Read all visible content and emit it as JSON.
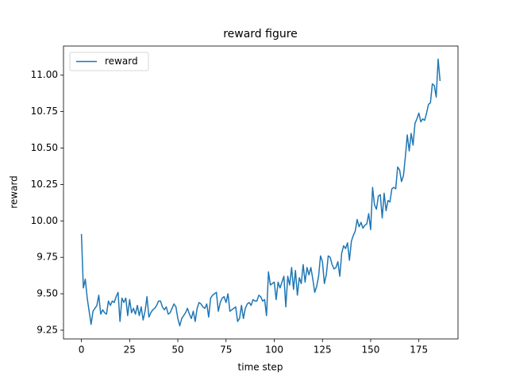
{
  "chart_data": {
    "type": "line",
    "title": "reward figure",
    "x_label": "time step",
    "y_label": "reward",
    "x": [
      0,
      1,
      2,
      3,
      4,
      5,
      6,
      7,
      8,
      9,
      10,
      11,
      12,
      13,
      14,
      15,
      16,
      17,
      18,
      19,
      20,
      21,
      22,
      23,
      24,
      25,
      26,
      27,
      28,
      29,
      30,
      31,
      32,
      33,
      34,
      35,
      36,
      37,
      38,
      39,
      40,
      41,
      42,
      43,
      44,
      45,
      46,
      47,
      48,
      49,
      50,
      51,
      52,
      53,
      54,
      55,
      56,
      57,
      58,
      59,
      60,
      61,
      62,
      63,
      64,
      65,
      66,
      67,
      68,
      69,
      70,
      71,
      72,
      73,
      74,
      75,
      76,
      77,
      78,
      79,
      80,
      81,
      82,
      83,
      84,
      85,
      86,
      87,
      88,
      89,
      90,
      91,
      92,
      93,
      94,
      95,
      96,
      97,
      98,
      99,
      100,
      101,
      102,
      103,
      104,
      105,
      106,
      107,
      108,
      109,
      110,
      111,
      112,
      113,
      114,
      115,
      116,
      117,
      118,
      119,
      120,
      121,
      122,
      123,
      124,
      125,
      126,
      127,
      128,
      129,
      130,
      131,
      132,
      133,
      134,
      135,
      136,
      137,
      138,
      139,
      140,
      141,
      142,
      143,
      144,
      145,
      146,
      147,
      148,
      149,
      150,
      151,
      152,
      153,
      154,
      155,
      156,
      157,
      158,
      159,
      160,
      161,
      162,
      163,
      164,
      165,
      166,
      167,
      168,
      169,
      170,
      171,
      172,
      173,
      174,
      175,
      176,
      177,
      178,
      179,
      180,
      181,
      182,
      183,
      184,
      185,
      186
    ],
    "series": [
      {
        "name": "reward",
        "color": "#1f77b4",
        "values": [
          9.91,
          9.54,
          9.6,
          9.47,
          9.38,
          9.29,
          9.38,
          9.4,
          9.42,
          9.49,
          9.36,
          9.39,
          9.37,
          9.36,
          9.45,
          9.42,
          9.45,
          9.44,
          9.48,
          9.51,
          9.31,
          9.47,
          9.44,
          9.47,
          9.35,
          9.46,
          9.37,
          9.4,
          9.36,
          9.42,
          9.35,
          9.41,
          9.32,
          9.38,
          9.48,
          9.34,
          9.37,
          9.39,
          9.4,
          9.42,
          9.45,
          9.45,
          9.41,
          9.39,
          9.41,
          9.36,
          9.37,
          9.4,
          9.43,
          9.41,
          9.33,
          9.28,
          9.33,
          9.35,
          9.37,
          9.4,
          9.36,
          9.33,
          9.38,
          9.31,
          9.4,
          9.44,
          9.43,
          9.41,
          9.4,
          9.43,
          9.34,
          9.47,
          9.49,
          9.5,
          9.51,
          9.38,
          9.44,
          9.47,
          9.48,
          9.44,
          9.5,
          9.38,
          9.39,
          9.4,
          9.41,
          9.31,
          9.33,
          9.42,
          9.33,
          9.4,
          9.43,
          9.44,
          9.42,
          9.46,
          9.45,
          9.45,
          9.49,
          9.48,
          9.45,
          9.46,
          9.35,
          9.65,
          9.56,
          9.57,
          9.58,
          9.46,
          9.58,
          9.54,
          9.58,
          9.62,
          9.41,
          9.62,
          9.56,
          9.68,
          9.53,
          9.66,
          9.49,
          9.61,
          9.57,
          9.7,
          9.58,
          9.68,
          9.63,
          9.68,
          9.6,
          9.51,
          9.55,
          9.62,
          9.76,
          9.72,
          9.57,
          9.63,
          9.76,
          9.75,
          9.7,
          9.67,
          9.68,
          9.72,
          9.62,
          9.78,
          9.83,
          9.81,
          9.85,
          9.73,
          9.86,
          9.9,
          9.93,
          10.01,
          9.96,
          9.99,
          9.95,
          9.97,
          9.98,
          10.05,
          9.94,
          10.23,
          10.11,
          10.08,
          10.17,
          10.18,
          10.02,
          10.19,
          10.07,
          10.14,
          10.13,
          10.22,
          10.23,
          10.22,
          10.37,
          10.35,
          10.27,
          10.31,
          10.44,
          10.59,
          10.48,
          10.6,
          10.52,
          10.67,
          10.7,
          10.74,
          10.68,
          10.7,
          10.69,
          10.74,
          10.8,
          10.81,
          10.94,
          10.93,
          10.85,
          11.11,
          10.96
        ]
      }
    ],
    "xlim": [
      -9.3,
      195.3
    ],
    "xticks": [
      0,
      25,
      50,
      75,
      100,
      125,
      150,
      175
    ],
    "ylim": [
      9.19,
      11.2
    ],
    "yticks": [
      9.25,
      {
        "value": 9.5,
        "label": "9.50"
      },
      9.75,
      {
        "value": 10,
        "label": "10.00"
      },
      10.25,
      {
        "value": 10.5,
        "label": "10.50"
      },
      10.75,
      {
        "value": 11,
        "label": "11.00"
      }
    ],
    "legend": "upper left"
  }
}
